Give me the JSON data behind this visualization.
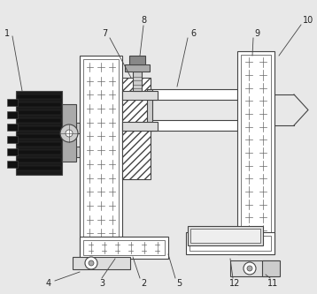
{
  "bg_color": "#e8e8e8",
  "line_color": "#444444",
  "fill_white": "#ffffff",
  "fill_light": "#f0f0f0",
  "fill_dark": "#222222",
  "fill_gray": "#888888",
  "fill_med": "#bbbbbb",
  "figsize": [
    3.58,
    3.33
  ],
  "dpi": 100,
  "label_fs": 7.0,
  "label_color": "#222222",
  "lw": 0.8
}
